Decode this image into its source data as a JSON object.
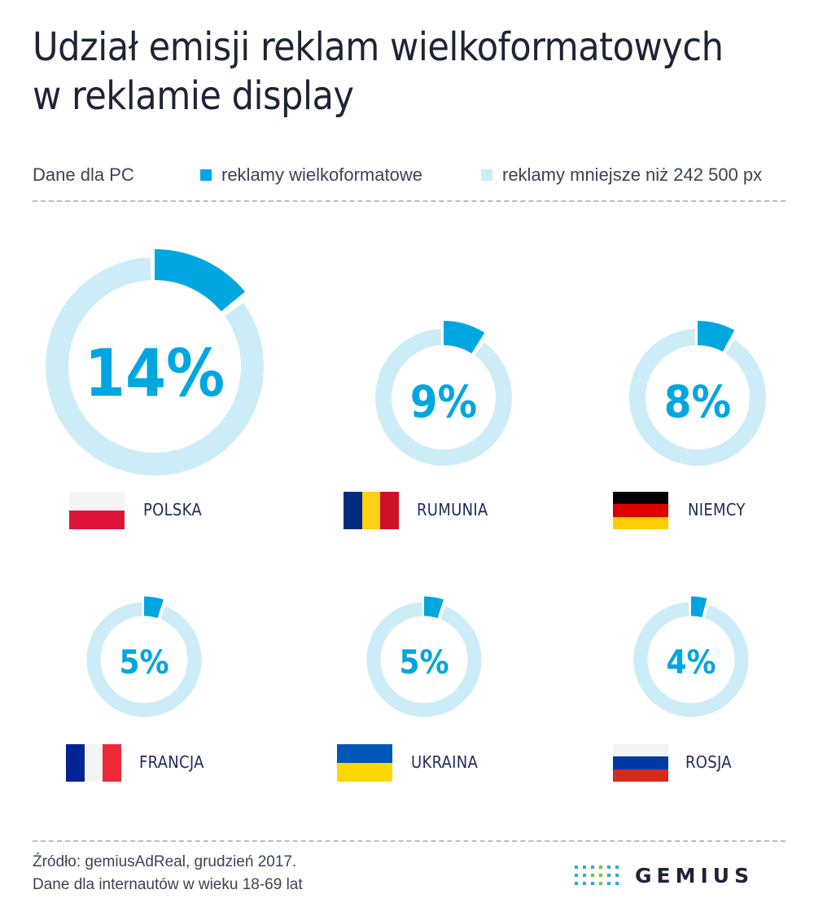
{
  "title": {
    "line1": "Udział emisji reklam wielkoformatowych",
    "line2": "w reklamie display"
  },
  "legend": {
    "note": "Dane dla PC",
    "large_label": "reklamy wielkoformatowe",
    "small_label": "reklamy mniejsze niż 242 500 px"
  },
  "colors": {
    "large": "#00a6e0",
    "small": "#ccecf7",
    "text": "#1e2436"
  },
  "chart_data": {
    "type": "pie",
    "title": "Udział emisji reklam wielkoformatowych w reklamie display",
    "subtitle": "Dane dla PC",
    "series": [
      {
        "name": "reklamy wielkoformatowe"
      },
      {
        "name": "reklamy mniejsze niż 242 500 px"
      }
    ],
    "countries": [
      {
        "name": "POLSKA",
        "value": 14,
        "label": "14%",
        "flag": "poland"
      },
      {
        "name": "RUMUNIA",
        "value": 9,
        "label": "9%",
        "flag": "romania"
      },
      {
        "name": "NIEMCY",
        "value": 8,
        "label": "8%",
        "flag": "germany"
      },
      {
        "name": "FRANCJA",
        "value": 5,
        "label": "5%",
        "flag": "france"
      },
      {
        "name": "UKRAINA",
        "value": 5,
        "label": "5%",
        "flag": "ukraine"
      },
      {
        "name": "ROSJA",
        "value": 4,
        "label": "4%",
        "flag": "russia"
      }
    ]
  },
  "footer": {
    "source": "Źródło: gemiusAdReal, grudzień 2017.",
    "audience": "Dane dla internautów w wieku 18-69 lat"
  },
  "logo": {
    "text": "GEMIUS",
    "icon": "gemius-dots-icon"
  }
}
